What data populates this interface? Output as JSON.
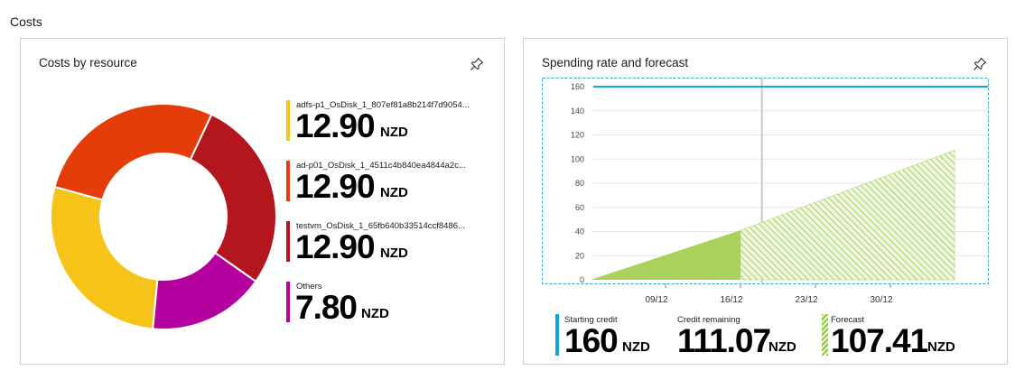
{
  "page": {
    "title": "Costs"
  },
  "costs_tile": {
    "title": "Costs by resource",
    "pin_icon": "pin-icon",
    "items": [
      {
        "name": "adfs-p1_OsDisk_1_807ef81a8b214f7d9054...",
        "amount": "12.90",
        "currency": "NZD",
        "value": 12.9,
        "color": "#f6c318"
      },
      {
        "name": "ad-p01_OsDisk_1_4511c4b840ea4844a2c...",
        "amount": "12.90",
        "currency": "NZD",
        "value": 12.9,
        "color": "#e53d0a"
      },
      {
        "name": "testvm_OsDisk_1_65fb640b33514ccf8486...",
        "amount": "12.90",
        "currency": "NZD",
        "value": 12.9,
        "color": "#b4161e"
      },
      {
        "name": "Others",
        "amount": "7.80",
        "currency": "NZD",
        "value": 7.8,
        "color": "#b4009e"
      }
    ]
  },
  "spend_tile": {
    "title": "Spending rate and forecast",
    "pin_icon": "pin-icon",
    "kpis": [
      {
        "label": "Starting credit",
        "amount": "160",
        "currency": "NZD",
        "color": "#0ba5e0"
      },
      {
        "label": "Credit remaining",
        "amount": "111.07",
        "currency": "NZD",
        "color": "#ffffff"
      },
      {
        "label": "Forecast",
        "amount": "107.41",
        "currency": "NZD",
        "color": "#8cc63f"
      }
    ]
  },
  "chart_data": {
    "type": "area",
    "y_ticks": [
      "160",
      "140",
      "120",
      "100",
      "80",
      "60",
      "40",
      "20",
      "0"
    ],
    "ylim": [
      0,
      160
    ],
    "x_ticks": [
      "09/12",
      "16/12",
      "23/12",
      "30/12"
    ],
    "starting_credit": 160,
    "series": [
      {
        "name": "Spend",
        "points": [
          [
            "02/12",
            0
          ],
          [
            "16/12",
            41
          ]
        ],
        "color": "#a9d15c"
      },
      {
        "name": "Forecast",
        "points": [
          [
            "16/12",
            41
          ],
          [
            "05/01",
            107.41
          ]
        ],
        "color": "#a9d15c"
      }
    ],
    "today_marker": "18/12",
    "grid": true
  }
}
